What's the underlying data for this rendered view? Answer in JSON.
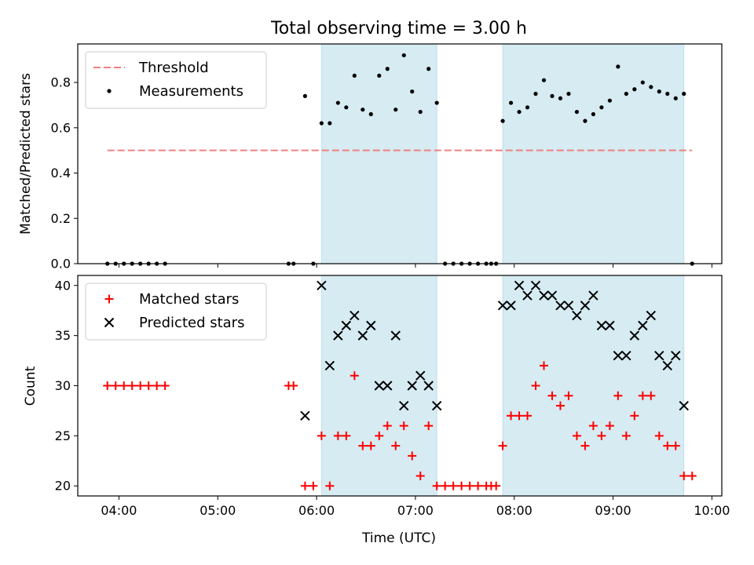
{
  "title": "Total observing time = 3.00 h",
  "xlabel": "Time (UTC)",
  "x_ticks": [
    "04:00",
    "05:00",
    "06:00",
    "07:00",
    "08:00",
    "09:00",
    "10:00"
  ],
  "colors": {
    "threshold": "#f08080",
    "measurement": "#000000",
    "matched": "#ff0000",
    "predicted": "#000000",
    "observing_span": "#add8e6"
  },
  "chart_data": [
    {
      "type": "scatter",
      "panel": "top",
      "ylabel": "Matched/Predicted stars",
      "ylim": [
        0,
        0.97
      ],
      "yticks": [
        "0.0",
        "0.2",
        "0.4",
        "0.6",
        "0.8"
      ],
      "xlim": [
        "03:35",
        "10:06"
      ],
      "observing_spans": [
        [
          "06:03",
          "07:13"
        ],
        [
          "07:53",
          "09:43"
        ]
      ],
      "legend_position": "upper-left",
      "threshold": {
        "label": "Threshold",
        "value": 0.5,
        "x_range": [
          "03:53",
          "09:48"
        ]
      },
      "series": [
        {
          "name": "Measurements",
          "marker": "dot",
          "points": [
            [
              "03:53",
              0
            ],
            [
              "03:58",
              0
            ],
            [
              "04:03",
              0
            ],
            [
              "04:08",
              0
            ],
            [
              "04:13",
              0
            ],
            [
              "04:18",
              0
            ],
            [
              "04:23",
              0
            ],
            [
              "04:28",
              0
            ],
            [
              "05:43",
              0
            ],
            [
              "05:46",
              0
            ],
            [
              "05:58",
              0
            ],
            [
              "05:53",
              0.74
            ],
            [
              "06:03",
              0.62
            ],
            [
              "06:08",
              0.62
            ],
            [
              "06:13",
              0.71
            ],
            [
              "06:18",
              0.69
            ],
            [
              "06:23",
              0.83
            ],
            [
              "06:28",
              0.68
            ],
            [
              "06:33",
              0.66
            ],
            [
              "06:38",
              0.83
            ],
            [
              "06:43",
              0.86
            ],
            [
              "06:48",
              0.68
            ],
            [
              "06:53",
              0.92
            ],
            [
              "06:58",
              0.76
            ],
            [
              "07:03",
              0.67
            ],
            [
              "07:08",
              0.86
            ],
            [
              "07:13",
              0.71
            ],
            [
              "07:18",
              0
            ],
            [
              "07:23",
              0
            ],
            [
              "07:28",
              0
            ],
            [
              "07:33",
              0
            ],
            [
              "07:38",
              0
            ],
            [
              "07:43",
              0
            ],
            [
              "07:46",
              0
            ],
            [
              "07:49",
              0
            ],
            [
              "07:53",
              0.63
            ],
            [
              "07:58",
              0.71
            ],
            [
              "08:03",
              0.67
            ],
            [
              "08:08",
              0.69
            ],
            [
              "08:13",
              0.75
            ],
            [
              "08:18",
              0.81
            ],
            [
              "08:23",
              0.74
            ],
            [
              "08:28",
              0.73
            ],
            [
              "08:33",
              0.75
            ],
            [
              "08:38",
              0.67
            ],
            [
              "08:43",
              0.63
            ],
            [
              "08:48",
              0.66
            ],
            [
              "08:53",
              0.69
            ],
            [
              "08:58",
              0.72
            ],
            [
              "09:03",
              0.87
            ],
            [
              "09:08",
              0.75
            ],
            [
              "09:13",
              0.77
            ],
            [
              "09:18",
              0.8
            ],
            [
              "09:23",
              0.78
            ],
            [
              "09:28",
              0.76
            ],
            [
              "09:33",
              0.75
            ],
            [
              "09:38",
              0.73
            ],
            [
              "09:43",
              0.75
            ],
            [
              "09:48",
              0
            ]
          ]
        }
      ]
    },
    {
      "type": "scatter",
      "panel": "bottom",
      "ylabel": "Count",
      "ylim": [
        19,
        41
      ],
      "yticks": [
        "20",
        "25",
        "30",
        "35",
        "40"
      ],
      "xlim": [
        "03:35",
        "10:06"
      ],
      "observing_spans": [
        [
          "06:03",
          "07:13"
        ],
        [
          "07:53",
          "09:43"
        ]
      ],
      "legend_position": "upper-left",
      "series": [
        {
          "name": "Matched stars",
          "marker": "plus",
          "points": [
            [
              "03:53",
              30
            ],
            [
              "03:58",
              30
            ],
            [
              "04:03",
              30
            ],
            [
              "04:08",
              30
            ],
            [
              "04:13",
              30
            ],
            [
              "04:18",
              30
            ],
            [
              "04:23",
              30
            ],
            [
              "04:28",
              30
            ],
            [
              "05:43",
              30
            ],
            [
              "05:46",
              30
            ],
            [
              "05:53",
              20
            ],
            [
              "05:58",
              20
            ],
            [
              "06:03",
              25
            ],
            [
              "06:08",
              20
            ],
            [
              "06:13",
              25
            ],
            [
              "06:18",
              25
            ],
            [
              "06:23",
              31
            ],
            [
              "06:28",
              24
            ],
            [
              "06:33",
              24
            ],
            [
              "06:38",
              25
            ],
            [
              "06:43",
              26
            ],
            [
              "06:48",
              24
            ],
            [
              "06:53",
              26
            ],
            [
              "06:58",
              23
            ],
            [
              "07:03",
              21
            ],
            [
              "07:08",
              26
            ],
            [
              "07:13",
              20
            ],
            [
              "07:18",
              20
            ],
            [
              "07:23",
              20
            ],
            [
              "07:28",
              20
            ],
            [
              "07:33",
              20
            ],
            [
              "07:38",
              20
            ],
            [
              "07:43",
              20
            ],
            [
              "07:46",
              20
            ],
            [
              "07:49",
              20
            ],
            [
              "07:53",
              24
            ],
            [
              "07:58",
              27
            ],
            [
              "08:03",
              27
            ],
            [
              "08:08",
              27
            ],
            [
              "08:13",
              30
            ],
            [
              "08:18",
              32
            ],
            [
              "08:23",
              29
            ],
            [
              "08:28",
              28
            ],
            [
              "08:33",
              29
            ],
            [
              "08:38",
              25
            ],
            [
              "08:43",
              24
            ],
            [
              "08:48",
              26
            ],
            [
              "08:53",
              25
            ],
            [
              "08:58",
              26
            ],
            [
              "09:03",
              29
            ],
            [
              "09:08",
              25
            ],
            [
              "09:13",
              27
            ],
            [
              "09:18",
              29
            ],
            [
              "09:23",
              29
            ],
            [
              "09:28",
              25
            ],
            [
              "09:33",
              24
            ],
            [
              "09:38",
              24
            ],
            [
              "09:43",
              21
            ],
            [
              "09:48",
              21
            ]
          ]
        },
        {
          "name": "Predicted stars",
          "marker": "x",
          "points": [
            [
              "05:53",
              27
            ],
            [
              "06:03",
              40
            ],
            [
              "06:08",
              32
            ],
            [
              "06:13",
              35
            ],
            [
              "06:18",
              36
            ],
            [
              "06:23",
              37
            ],
            [
              "06:28",
              35
            ],
            [
              "06:33",
              36
            ],
            [
              "06:38",
              30
            ],
            [
              "06:43",
              30
            ],
            [
              "06:48",
              35
            ],
            [
              "06:53",
              28
            ],
            [
              "06:58",
              30
            ],
            [
              "07:03",
              31
            ],
            [
              "07:08",
              30
            ],
            [
              "07:13",
              28
            ],
            [
              "07:53",
              38
            ],
            [
              "07:58",
              38
            ],
            [
              "08:03",
              40
            ],
            [
              "08:08",
              39
            ],
            [
              "08:13",
              40
            ],
            [
              "08:18",
              39
            ],
            [
              "08:23",
              39
            ],
            [
              "08:28",
              38
            ],
            [
              "08:33",
              38
            ],
            [
              "08:38",
              37
            ],
            [
              "08:43",
              38
            ],
            [
              "08:48",
              39
            ],
            [
              "08:53",
              36
            ],
            [
              "08:58",
              36
            ],
            [
              "09:03",
              33
            ],
            [
              "09:08",
              33
            ],
            [
              "09:13",
              35
            ],
            [
              "09:18",
              36
            ],
            [
              "09:23",
              37
            ],
            [
              "09:28",
              33
            ],
            [
              "09:33",
              32
            ],
            [
              "09:38",
              33
            ],
            [
              "09:43",
              28
            ]
          ]
        }
      ]
    }
  ]
}
